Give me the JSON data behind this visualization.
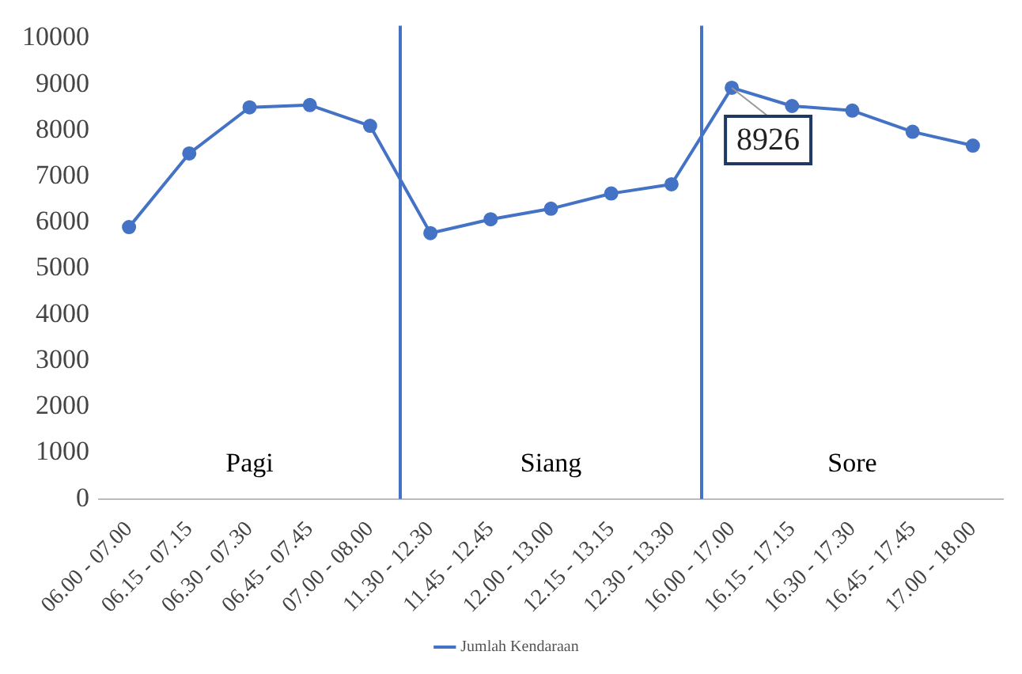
{
  "chart_data": {
    "type": "line",
    "categories": [
      "06.00 - 07.00",
      "06.15 - 07.15",
      "06.30 - 07.30",
      "06.45 - 07.45",
      "07.00 - 08.00",
      "11.30 - 12.30",
      "11.45 - 12.45",
      "12.00 - 13.00",
      "12.15 - 13.15",
      "12.30 - 13.30",
      "16.00 - 17.00",
      "16.15 - 17.15",
      "16.30 - 17.30",
      "16.45 - 17.45",
      "17.00 - 18.00"
    ],
    "series": [
      {
        "name": "Jumlah Kendaraan",
        "color": "#4472c4",
        "values": [
          5900,
          7500,
          8500,
          8550,
          8100,
          5770,
          6070,
          6300,
          6630,
          6830,
          8926,
          8530,
          8430,
          7970,
          7670
        ]
      }
    ],
    "ylim": [
      0,
      10000
    ],
    "yticks": [
      0,
      1000,
      2000,
      3000,
      4000,
      5000,
      6000,
      7000,
      8000,
      9000,
      10000
    ],
    "annotations": [
      "Pagi",
      "Siang",
      "Sore",
      {
        "text": "8926",
        "x": "16.00 - 17.00",
        "y": 8926
      }
    ],
    "grid": false,
    "legend": "bottom",
    "marker": "circle",
    "line_style": "solid"
  }
}
